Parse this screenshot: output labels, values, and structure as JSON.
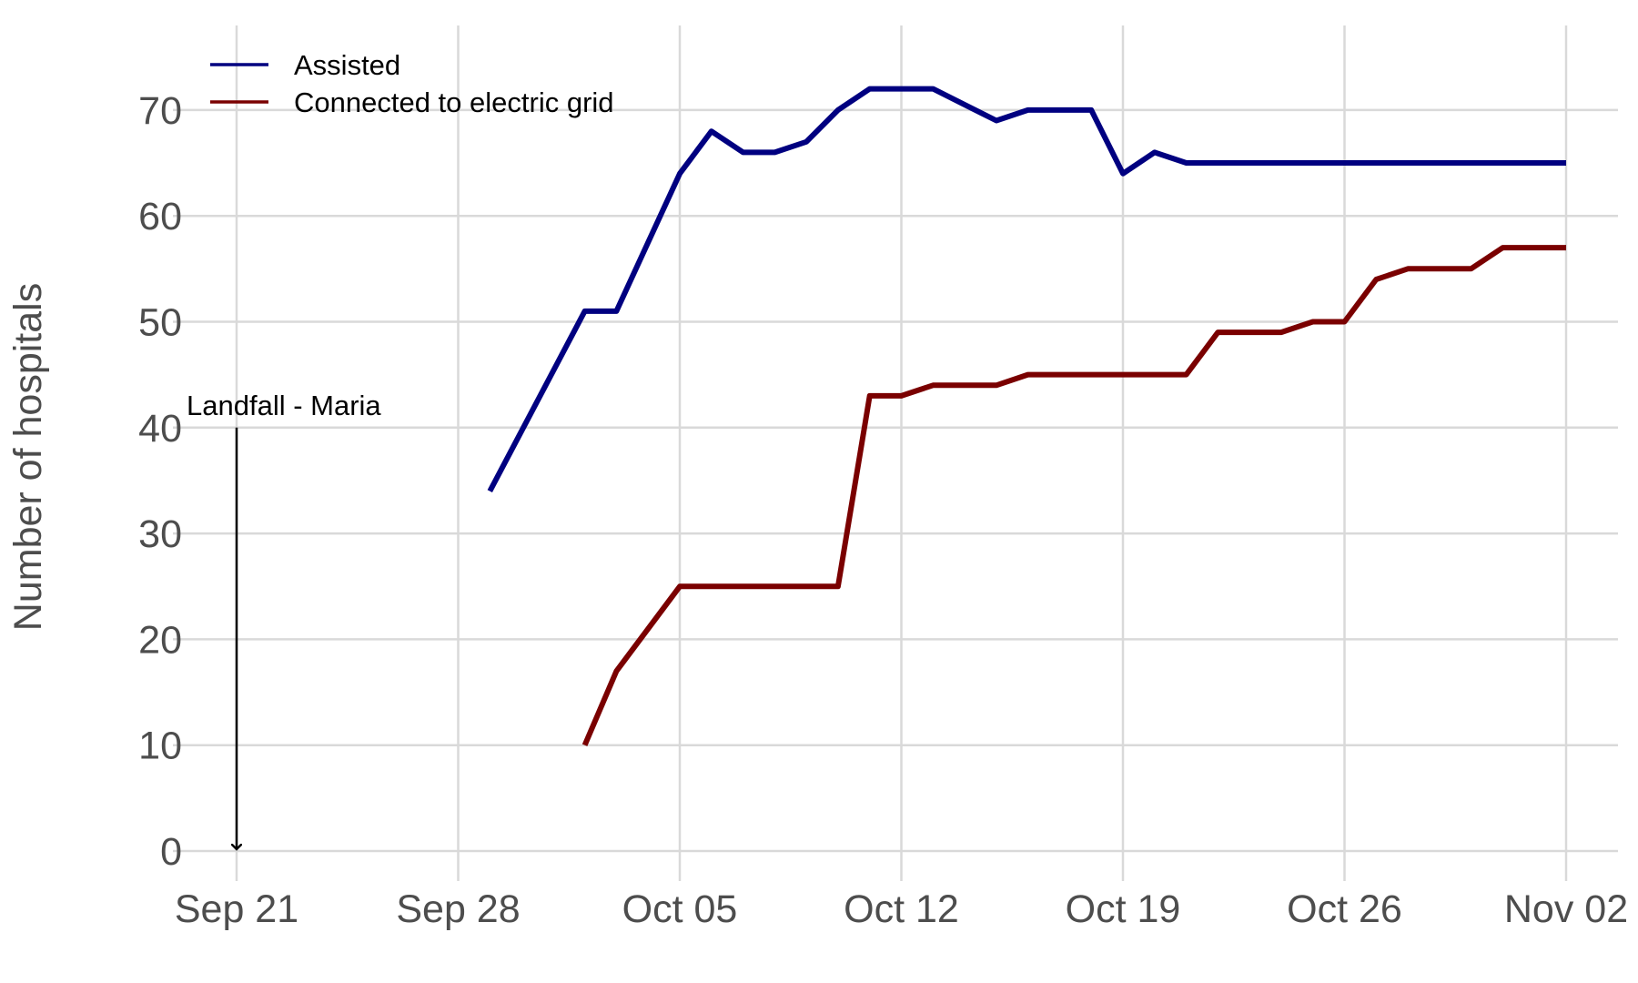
{
  "chart_data": {
    "type": "line",
    "title": "",
    "xlabel": "",
    "ylabel": "Number of hospitals",
    "xlim": [
      "2017-09-21",
      "2017-11-02"
    ],
    "ylim": [
      0,
      75
    ],
    "grid": true,
    "legend_position": "top-left",
    "x_ticks": [
      {
        "date": "2017-09-21",
        "label": "Sep 21"
      },
      {
        "date": "2017-09-28",
        "label": "Sep 28"
      },
      {
        "date": "2017-10-05",
        "label": "Oct 05"
      },
      {
        "date": "2017-10-12",
        "label": "Oct 12"
      },
      {
        "date": "2017-10-19",
        "label": "Oct 19"
      },
      {
        "date": "2017-10-26",
        "label": "Oct 26"
      },
      {
        "date": "2017-11-02",
        "label": "Nov 02"
      }
    ],
    "y_ticks": [
      0,
      10,
      20,
      30,
      40,
      50,
      60,
      70
    ],
    "series": [
      {
        "name": "Assisted",
        "color": "#000080",
        "points": [
          {
            "x": "2017-09-29",
            "y": 34
          },
          {
            "x": "2017-10-02",
            "y": 51
          },
          {
            "x": "2017-10-03",
            "y": 51
          },
          {
            "x": "2017-10-05",
            "y": 64
          },
          {
            "x": "2017-10-06",
            "y": 68
          },
          {
            "x": "2017-10-07",
            "y": 66
          },
          {
            "x": "2017-10-08",
            "y": 66
          },
          {
            "x": "2017-10-09",
            "y": 67
          },
          {
            "x": "2017-10-10",
            "y": 70
          },
          {
            "x": "2017-10-11",
            "y": 72
          },
          {
            "x": "2017-10-12",
            "y": 72
          },
          {
            "x": "2017-10-13",
            "y": 72
          },
          {
            "x": "2017-10-14",
            "y": 70.5
          },
          {
            "x": "2017-10-15",
            "y": 69
          },
          {
            "x": "2017-10-16",
            "y": 70
          },
          {
            "x": "2017-10-17",
            "y": 70
          },
          {
            "x": "2017-10-18",
            "y": 70
          },
          {
            "x": "2017-10-19",
            "y": 64
          },
          {
            "x": "2017-10-20",
            "y": 66
          },
          {
            "x": "2017-10-21",
            "y": 65
          },
          {
            "x": "2017-10-22",
            "y": 65
          },
          {
            "x": "2017-10-23",
            "y": 65
          },
          {
            "x": "2017-10-24",
            "y": 65
          },
          {
            "x": "2017-10-25",
            "y": 65
          },
          {
            "x": "2017-10-26",
            "y": 65
          },
          {
            "x": "2017-10-27",
            "y": 65
          },
          {
            "x": "2017-10-28",
            "y": 65
          },
          {
            "x": "2017-10-29",
            "y": 65
          },
          {
            "x": "2017-10-30",
            "y": 65
          },
          {
            "x": "2017-10-31",
            "y": 65
          },
          {
            "x": "2017-11-01",
            "y": 65
          },
          {
            "x": "2017-11-02",
            "y": 65
          }
        ]
      },
      {
        "name": "Connected to electric grid",
        "color": "#7a0000",
        "points": [
          {
            "x": "2017-10-02",
            "y": 10
          },
          {
            "x": "2017-10-03",
            "y": 17
          },
          {
            "x": "2017-10-05",
            "y": 25
          },
          {
            "x": "2017-10-06",
            "y": 25
          },
          {
            "x": "2017-10-07",
            "y": 25
          },
          {
            "x": "2017-10-08",
            "y": 25
          },
          {
            "x": "2017-10-09",
            "y": 25
          },
          {
            "x": "2017-10-10",
            "y": 25
          },
          {
            "x": "2017-10-11",
            "y": 43
          },
          {
            "x": "2017-10-12",
            "y": 43
          },
          {
            "x": "2017-10-13",
            "y": 44
          },
          {
            "x": "2017-10-14",
            "y": 44
          },
          {
            "x": "2017-10-15",
            "y": 44
          },
          {
            "x": "2017-10-16",
            "y": 45
          },
          {
            "x": "2017-10-17",
            "y": 45
          },
          {
            "x": "2017-10-18",
            "y": 45
          },
          {
            "x": "2017-10-19",
            "y": 45
          },
          {
            "x": "2017-10-20",
            "y": 45
          },
          {
            "x": "2017-10-21",
            "y": 45
          },
          {
            "x": "2017-10-22",
            "y": 49
          },
          {
            "x": "2017-10-23",
            "y": 49
          },
          {
            "x": "2017-10-24",
            "y": 49
          },
          {
            "x": "2017-10-25",
            "y": 50
          },
          {
            "x": "2017-10-26",
            "y": 50
          },
          {
            "x": "2017-10-27",
            "y": 54
          },
          {
            "x": "2017-10-28",
            "y": 55
          },
          {
            "x": "2017-10-29",
            "y": 55
          },
          {
            "x": "2017-10-30",
            "y": 55
          },
          {
            "x": "2017-10-31",
            "y": 57
          },
          {
            "x": "2017-11-01",
            "y": 57
          },
          {
            "x": "2017-11-02",
            "y": 57
          }
        ]
      }
    ],
    "annotations": [
      {
        "label": "Landfall - Maria",
        "x": "2017-09-21",
        "y_start": 40,
        "y_end": 0
      }
    ]
  }
}
